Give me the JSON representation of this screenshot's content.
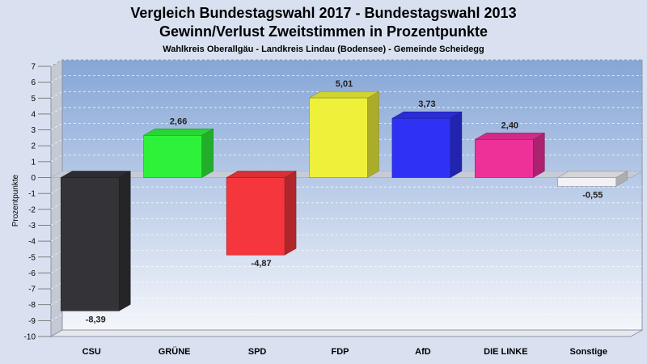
{
  "chart_data": {
    "type": "bar",
    "title": "Vergleich Bundestagswahl 2017 - Bundestagswahl 2013",
    "subtitle": "Gewinn/Verlust Zweitstimmen in Prozentpunkte",
    "subtitle2": "Wahlkreis Oberallgäu - Landkreis Lindau (Bodensee) - Gemeinde Scheidegg",
    "ylabel": "Prozentpunkte",
    "xlabel": "",
    "ylim": [
      -10,
      7
    ],
    "yticks": [
      "7",
      "6",
      "5",
      "4",
      "3",
      "2",
      "1",
      "0",
      "-1",
      "-2",
      "-3",
      "-4",
      "-5",
      "-6",
      "-7",
      "-8",
      "-9",
      "-10"
    ],
    "grid": true,
    "categories": [
      "CSU",
      "GRÜNE",
      "SPD",
      "FDP",
      "AfD",
      "DIE LINKE",
      "Sonstige"
    ],
    "values": [
      -8.39,
      2.66,
      -4.87,
      5.01,
      3.73,
      2.4,
      -0.55
    ],
    "value_labels": [
      "-8,39",
      "2,66",
      "-4,87",
      "5,01",
      "3,73",
      "2,40",
      "-0,55"
    ],
    "colors": [
      "#333338",
      "#2ef23a",
      "#f5363c",
      "#eef03a",
      "#2f32f4",
      "#ee3199",
      "#f2f2f6"
    ]
  }
}
